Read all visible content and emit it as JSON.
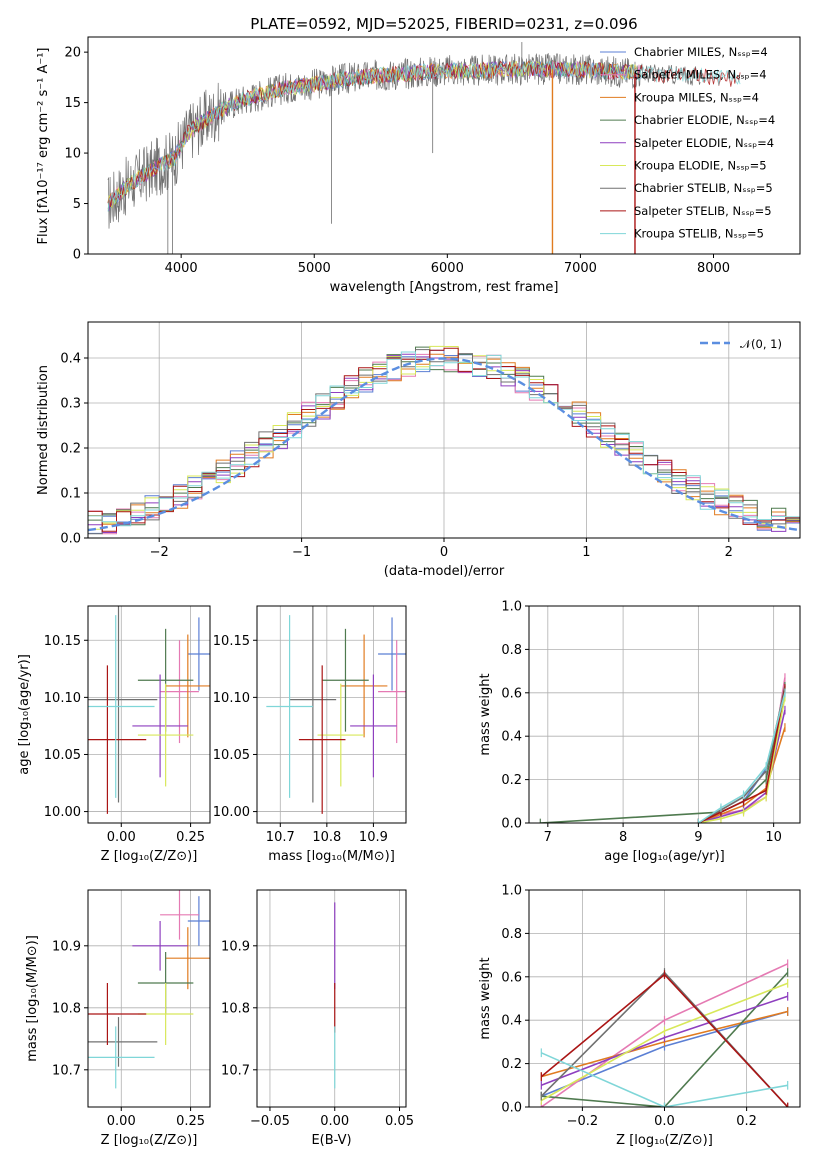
{
  "colors": {
    "chabrier_miles": "#5b7fd4",
    "salpeter_miles": "#e57ab3",
    "kroupa_miles": "#e07b20",
    "chabrier_elodie": "#4f7a4f",
    "salpeter_elodie": "#8e3fbf",
    "kroupa_elodie": "#d8e85a",
    "chabrier_stelib": "#707070",
    "salpeter_stelib": "#aa1515",
    "kroupa_stelib": "#7fd6d8",
    "normal": "#5b8ee0"
  },
  "chart_data": [
    {
      "id": "spectrum",
      "type": "line",
      "title": "PLATE=0592, MJD=52025, FIBERID=0231, z=0.096",
      "xlabel": "wavelength [Angstrom, rest frame]",
      "ylabel": "Flux [fλ10⁻¹⁷ erg cm⁻² s⁻¹ A⁻¹]",
      "xlim": [
        3300,
        8650
      ],
      "ylim": [
        0,
        21.5
      ],
      "xticks": [
        "4000",
        "5000",
        "6000",
        "7000",
        "8000"
      ],
      "yticks": [
        "0",
        "5",
        "10",
        "15",
        "20"
      ],
      "legend_position": "upper right",
      "legend": [
        "Chabrier MILES, Nₛₛₚ=4",
        "Salpeter MILES, Nₛₛₚ=4",
        "Kroupa MILES, Nₛₛₚ=4",
        "Chabrier ELODIE, Nₛₛₚ=4",
        "Salpeter ELODIE, Nₛₛₚ=4",
        "Kroupa ELODIE, Nₛₛₚ=5",
        "Chabrier STELIB, Nₛₛₚ=5",
        "Salpeter STELIB, Nₛₛₚ=5",
        "Kroupa STELIB, Nₛₛₚ=5"
      ],
      "continuum": {
        "x": [
          3450,
          3600,
          3800,
          3950,
          4050,
          4200,
          4400,
          4600,
          4800,
          5000,
          5200,
          5400,
          5600,
          5800,
          6000,
          6200,
          6400,
          6600,
          6800,
          7000,
          7200,
          7400,
          7600,
          7800,
          8000,
          8200
        ],
        "y": [
          5,
          6.8,
          8.5,
          9.5,
          12,
          13.5,
          15,
          15.8,
          16.5,
          16.8,
          17.3,
          17.6,
          17.8,
          18,
          18.2,
          18.1,
          18.3,
          18.3,
          18.3,
          18.3,
          18.1,
          18,
          17.8,
          17.7,
          17.5,
          17.3
        ]
      },
      "data_range": [
        3450,
        7450
      ],
      "model_range": [
        3450,
        8200
      ],
      "spikes": [
        {
          "x": 3900,
          "y": 0
        },
        {
          "x": 3935,
          "y": 0
        },
        {
          "x": 5130,
          "y": 3
        },
        {
          "x": 5890,
          "y": 10
        },
        {
          "x": 6560,
          "y": 21
        },
        {
          "x": 6790,
          "y": 0
        },
        {
          "x": 7410,
          "y": 0
        }
      ]
    },
    {
      "id": "residuals",
      "type": "histogram",
      "xlabel": "(data-model)/error",
      "ylabel": "Normed distribution",
      "xlim": [
        -2.5,
        2.5
      ],
      "ylim": [
        0,
        0.48
      ],
      "xticks": [
        "−2",
        "−1",
        "0",
        "1",
        "2"
      ],
      "yticks": [
        "0.0",
        "0.1",
        "0.2",
        "0.3",
        "0.4"
      ],
      "bin_edges_range": [
        -2.5,
        2.5
      ],
      "bin_count": 50,
      "legend": [
        "𝒩(0, 1)"
      ],
      "legend_position": "upper right",
      "grid": true
    },
    {
      "id": "age-vs-Z",
      "type": "errorbar",
      "xlabel": "Z [log₁₀(Z/Z⊙)]",
      "ylabel": "age  [log₁₀(age/yr)]",
      "xlim": [
        -0.12,
        0.32
      ],
      "ylim": [
        9.99,
        10.18
      ],
      "xticks": [
        "0.00",
        "0.25"
      ],
      "yticks": [
        "10.00",
        "10.05",
        "10.10",
        "10.15"
      ],
      "grid": true,
      "points": [
        {
          "model": "chabrier_miles",
          "x": 0.28,
          "y": 10.138,
          "xerr": 0.04,
          "yerr": 0.032
        },
        {
          "model": "salpeter_miles",
          "x": 0.21,
          "y": 10.105,
          "xerr": 0.07,
          "yerr": 0.045
        },
        {
          "model": "kroupa_miles",
          "x": 0.24,
          "y": 10.11,
          "xerr": 0.08,
          "yerr": 0.045
        },
        {
          "model": "chabrier_elodie",
          "x": 0.16,
          "y": 10.115,
          "xerr": 0.1,
          "yerr": 0.045
        },
        {
          "model": "salpeter_elodie",
          "x": 0.14,
          "y": 10.075,
          "xerr": 0.1,
          "yerr": 0.045
        },
        {
          "model": "kroupa_elodie",
          "x": 0.16,
          "y": 10.067,
          "xerr": 0.1,
          "yerr": 0.045
        },
        {
          "model": "chabrier_stelib",
          "x": -0.01,
          "y": 10.098,
          "xerr": 0.14,
          "yerr": 0.09
        },
        {
          "model": "salpeter_stelib",
          "x": -0.05,
          "y": 10.063,
          "xerr": 0.14,
          "yerr": 0.065
        },
        {
          "model": "kroupa_stelib",
          "x": -0.02,
          "y": 10.092,
          "xerr": 0.14,
          "yerr": 0.08
        }
      ]
    },
    {
      "id": "age-vs-mass",
      "type": "errorbar",
      "xlabel": "mass [log₁₀(M/M⊙)]",
      "ylabel": "",
      "xlim": [
        10.65,
        10.97
      ],
      "ylim": [
        9.99,
        10.18
      ],
      "xticks": [
        "10.7",
        "10.8",
        "10.9"
      ],
      "yticks": [
        "10.00",
        "10.05",
        "10.10",
        "10.15"
      ],
      "grid": true,
      "points": [
        {
          "model": "chabrier_miles",
          "x": 10.94,
          "y": 10.138,
          "xerr": 0.03,
          "yerr": 0.032
        },
        {
          "model": "salpeter_miles",
          "x": 10.95,
          "y": 10.105,
          "xerr": 0.04,
          "yerr": 0.045
        },
        {
          "model": "kroupa_miles",
          "x": 10.88,
          "y": 10.11,
          "xerr": 0.05,
          "yerr": 0.045
        },
        {
          "model": "chabrier_elodie",
          "x": 10.84,
          "y": 10.115,
          "xerr": 0.05,
          "yerr": 0.045
        },
        {
          "model": "salpeter_elodie",
          "x": 10.9,
          "y": 10.075,
          "xerr": 0.05,
          "yerr": 0.045
        },
        {
          "model": "kroupa_elodie",
          "x": 10.83,
          "y": 10.067,
          "xerr": 0.05,
          "yerr": 0.045
        },
        {
          "model": "chabrier_stelib",
          "x": 10.77,
          "y": 10.098,
          "xerr": 0.05,
          "yerr": 0.09
        },
        {
          "model": "salpeter_stelib",
          "x": 10.79,
          "y": 10.063,
          "xerr": 0.05,
          "yerr": 0.065
        },
        {
          "model": "kroupa_stelib",
          "x": 10.72,
          "y": 10.092,
          "xerr": 0.05,
          "yerr": 0.08
        }
      ]
    },
    {
      "id": "weight-vs-age",
      "type": "line",
      "xlabel": "age  [log₁₀(age/yr)]",
      "ylabel": "mass weight",
      "xlim": [
        6.75,
        10.35
      ],
      "ylim": [
        0,
        1
      ],
      "xticks": [
        "7",
        "8",
        "9",
        "10"
      ],
      "yticks": [
        "0.0",
        "0.2",
        "0.4",
        "0.6",
        "0.8",
        "1.0"
      ],
      "grid": true,
      "series": [
        {
          "model": "chabrier_miles",
          "x": [
            9.0,
            9.3,
            9.6,
            9.9,
            10.15
          ],
          "y": [
            0.0,
            0.05,
            0.1,
            0.25,
            0.6
          ]
        },
        {
          "model": "salpeter_miles",
          "x": [
            9.0,
            9.3,
            9.6,
            9.9,
            10.15
          ],
          "y": [
            0.0,
            0.04,
            0.06,
            0.12,
            0.67
          ]
        },
        {
          "model": "kroupa_miles",
          "x": [
            9.0,
            9.3,
            9.6,
            9.9,
            10.15
          ],
          "y": [
            0.0,
            0.04,
            0.08,
            0.16,
            0.44
          ]
        },
        {
          "model": "chabrier_elodie",
          "x": [
            6.9,
            9.3,
            9.6,
            9.9,
            10.15
          ],
          "y": [
            0.0,
            0.05,
            0.1,
            0.2,
            0.63
          ]
        },
        {
          "model": "salpeter_elodie",
          "x": [
            9.0,
            9.3,
            9.6,
            9.9,
            10.15
          ],
          "y": [
            0.0,
            0.03,
            0.06,
            0.14,
            0.52
          ]
        },
        {
          "model": "kroupa_elodie",
          "x": [
            9.0,
            9.3,
            9.6,
            9.9,
            10.15
          ],
          "y": [
            0.0,
            0.02,
            0.05,
            0.12,
            0.58
          ]
        },
        {
          "model": "chabrier_stelib",
          "x": [
            9.0,
            9.3,
            9.6,
            9.9,
            10.15
          ],
          "y": [
            0.0,
            0.06,
            0.12,
            0.24,
            0.62
          ]
        },
        {
          "model": "salpeter_stelib",
          "x": [
            9.0,
            9.3,
            9.6,
            9.9,
            10.15
          ],
          "y": [
            0.0,
            0.05,
            0.1,
            0.15,
            0.62
          ]
        },
        {
          "model": "kroupa_stelib",
          "x": [
            9.0,
            9.3,
            9.6,
            9.9,
            10.15
          ],
          "y": [
            0.0,
            0.07,
            0.13,
            0.26,
            0.6
          ]
        }
      ]
    },
    {
      "id": "mass-vs-Z",
      "type": "errorbar",
      "xlabel": "Z [log₁₀(Z/Z⊙)]",
      "ylabel": "mass [log₁₀(M/M⊙)]",
      "xlim": [
        -0.12,
        0.32
      ],
      "ylim": [
        10.64,
        10.99
      ],
      "xticks": [
        "0.00",
        "0.25"
      ],
      "yticks": [
        "10.7",
        "10.8",
        "10.9"
      ],
      "grid": true,
      "points": [
        {
          "model": "chabrier_miles",
          "x": 0.28,
          "y": 10.94,
          "xerr": 0.04,
          "yerr": 0.04
        },
        {
          "model": "salpeter_miles",
          "x": 0.21,
          "y": 10.95,
          "xerr": 0.07,
          "yerr": 0.04
        },
        {
          "model": "kroupa_miles",
          "x": 0.24,
          "y": 10.88,
          "xerr": 0.08,
          "yerr": 0.05
        },
        {
          "model": "chabrier_elodie",
          "x": 0.16,
          "y": 10.84,
          "xerr": 0.1,
          "yerr": 0.05
        },
        {
          "model": "salpeter_elodie",
          "x": 0.14,
          "y": 10.9,
          "xerr": 0.1,
          "yerr": 0.04
        },
        {
          "model": "kroupa_elodie",
          "x": 0.16,
          "y": 10.79,
          "xerr": 0.1,
          "yerr": 0.05
        },
        {
          "model": "chabrier_stelib",
          "x": -0.01,
          "y": 10.745,
          "xerr": 0.14,
          "yerr": 0.04
        },
        {
          "model": "salpeter_stelib",
          "x": -0.05,
          "y": 10.79,
          "xerr": 0.14,
          "yerr": 0.05
        },
        {
          "model": "kroupa_stelib",
          "x": -0.02,
          "y": 10.72,
          "xerr": 0.14,
          "yerr": 0.05
        }
      ]
    },
    {
      "id": "mass-vs-ebv",
      "type": "errorbar",
      "xlabel": "E(B-V)",
      "ylabel": "",
      "xlim": [
        -0.06,
        0.055
      ],
      "ylim": [
        10.64,
        10.99
      ],
      "xticks": [
        "−0.05",
        "0.00",
        "0.05"
      ],
      "yticks": [
        "10.7",
        "10.8",
        "10.9"
      ],
      "grid": true,
      "points": [
        {
          "model": "salpeter_elodie",
          "x": 0.0,
          "y": 10.9,
          "xerr": 0.0,
          "yerr": 0.07
        },
        {
          "model": "salpeter_stelib",
          "x": 0.0,
          "y": 10.8,
          "xerr": 0.0,
          "yerr": 0.04
        },
        {
          "model": "kroupa_stelib",
          "x": 0.0,
          "y": 10.72,
          "xerr": 0.0,
          "yerr": 0.05
        }
      ]
    },
    {
      "id": "weight-vs-Z",
      "type": "line",
      "xlabel": "Z [log₁₀(Z/Z⊙)]",
      "ylabel": "mass weight",
      "xlim": [
        -0.33,
        0.33
      ],
      "ylim": [
        0,
        1
      ],
      "xticks": [
        "−0.2",
        "0.0",
        "0.2"
      ],
      "yticks": [
        "0.0",
        "0.2",
        "0.4",
        "0.6",
        "0.8",
        "1.0"
      ],
      "grid": true,
      "series": [
        {
          "model": "chabrier_miles",
          "x": [
            -0.3,
            0.0,
            0.3
          ],
          "y": [
            0.05,
            0.28,
            0.44
          ]
        },
        {
          "model": "salpeter_miles",
          "x": [
            -0.3,
            0.0,
            0.3
          ],
          "y": [
            0.0,
            0.4,
            0.66
          ]
        },
        {
          "model": "kroupa_miles",
          "x": [
            -0.3,
            0.0,
            0.3
          ],
          "y": [
            0.14,
            0.3,
            0.44
          ]
        },
        {
          "model": "chabrier_elodie",
          "x": [
            -0.3,
            0.0,
            0.3
          ],
          "y": [
            0.05,
            0.0,
            0.62
          ]
        },
        {
          "model": "salpeter_elodie",
          "x": [
            -0.3,
            0.0,
            0.3
          ],
          "y": [
            0.1,
            0.32,
            0.51
          ]
        },
        {
          "model": "kroupa_elodie",
          "x": [
            -0.3,
            0.0,
            0.3
          ],
          "y": [
            0.03,
            0.35,
            0.57
          ]
        },
        {
          "model": "chabrier_stelib",
          "x": [
            -0.3,
            0.0,
            0.3
          ],
          "y": [
            0.05,
            0.62,
            0.0
          ]
        },
        {
          "model": "salpeter_stelib",
          "x": [
            -0.3,
            0.0,
            0.3
          ],
          "y": [
            0.14,
            0.61,
            0.0
          ]
        },
        {
          "model": "kroupa_stelib",
          "x": [
            -0.3,
            0.0,
            0.3
          ],
          "y": [
            0.25,
            0.0,
            0.1
          ]
        }
      ]
    }
  ]
}
